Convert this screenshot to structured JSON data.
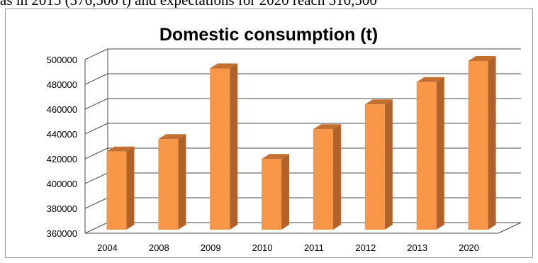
{
  "caption_fragment": "as in 2015 (376,500 t) and expectations for 2020 reach 510,500",
  "colors": {
    "bar_front": "#f79646",
    "bar_side": "#b0622a",
    "bar_top": "#c26f2f",
    "grid": "#4a4a4a"
  },
  "chart_data": {
    "type": "bar",
    "title": "Domestic consumption (t)",
    "xlabel": "",
    "ylabel": "",
    "categories": [
      "2004",
      "2008",
      "2009",
      "2010",
      "2011",
      "2012",
      "2013",
      "2020"
    ],
    "values": [
      423000,
      433000,
      490000,
      417000,
      441000,
      461000,
      479000,
      496000
    ],
    "ylim": [
      360000,
      500000
    ],
    "yticks": [
      "360000",
      "380000",
      "400000",
      "420000",
      "440000",
      "460000",
      "480000",
      "500000"
    ],
    "grid": true,
    "legend": "none",
    "style": "3d-clustered-column"
  }
}
